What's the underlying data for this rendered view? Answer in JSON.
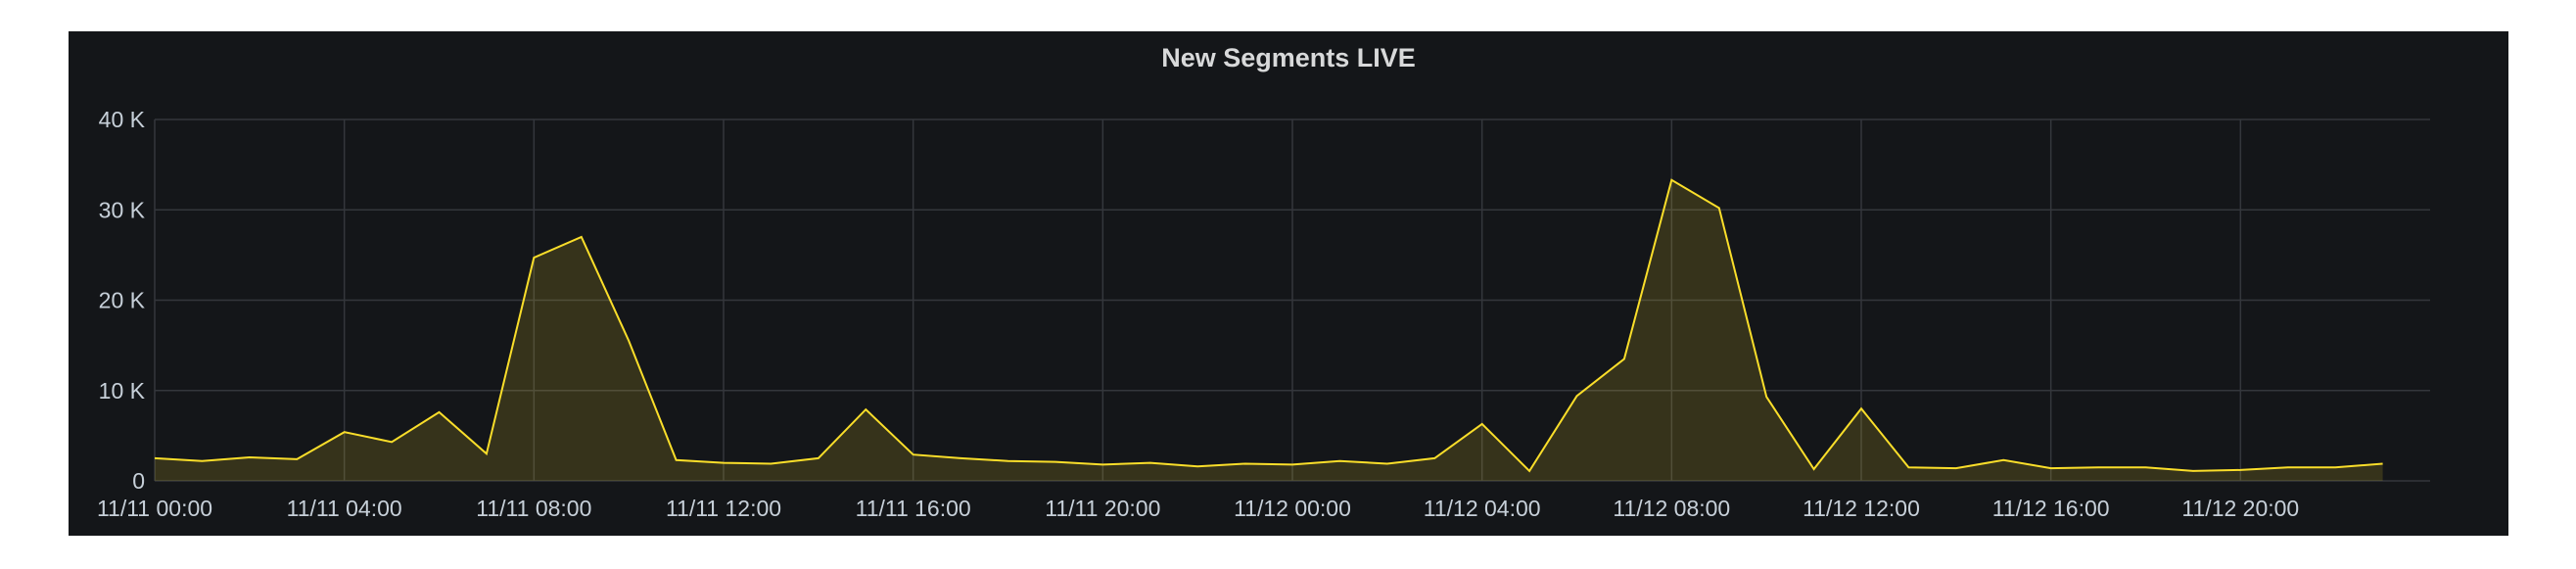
{
  "panel": {
    "title": "New Segments LIVE"
  },
  "chart_data": {
    "type": "area",
    "title": "New Segments LIVE",
    "xlabel": "",
    "ylabel": "",
    "ylim": [
      0,
      40000
    ],
    "yticks": [
      0,
      10000,
      20000,
      30000,
      40000
    ],
    "ytick_labels": [
      "0",
      "10 K",
      "20 K",
      "30 K",
      "40 K"
    ],
    "xlim_hours": [
      0,
      48
    ],
    "xticks": [
      "11/11 00:00",
      "11/11 04:00",
      "11/11 08:00",
      "11/11 12:00",
      "11/11 16:00",
      "11/11 20:00",
      "11/12 00:00",
      "11/12 04:00",
      "11/12 08:00",
      "11/12 12:00",
      "11/12 16:00",
      "11/12 20:00"
    ],
    "xtick_hours": [
      0,
      4,
      8,
      12,
      16,
      20,
      24,
      28,
      32,
      36,
      40,
      44
    ],
    "grid": true,
    "legend": "none",
    "series": [
      {
        "color": "#fade2a",
        "x_hours": [
          0,
          1,
          2,
          3,
          4,
          5,
          6,
          7,
          8,
          9,
          10,
          11,
          12,
          13,
          14,
          15,
          16,
          17,
          18,
          19,
          20,
          21,
          22,
          23,
          24,
          25,
          26,
          27,
          28,
          29,
          30,
          31,
          32,
          33,
          34,
          35,
          36,
          37,
          38,
          39,
          40,
          41,
          42,
          43,
          44,
          45,
          46,
          47
        ],
        "values": [
          2500,
          2200,
          2600,
          2400,
          5400,
          4300,
          7600,
          3000,
          24700,
          27000,
          15500,
          2300,
          2000,
          1900,
          2500,
          7900,
          2900,
          2500,
          2200,
          2100,
          1800,
          2000,
          1600,
          1900,
          1800,
          2200,
          1900,
          2500,
          6300,
          1100,
          9400,
          13500,
          33300,
          30200,
          9300,
          1300,
          8000,
          1500,
          1400,
          2300,
          1400,
          1500,
          1500,
          1100,
          1200,
          1500,
          1500,
          1900
        ]
      }
    ]
  }
}
